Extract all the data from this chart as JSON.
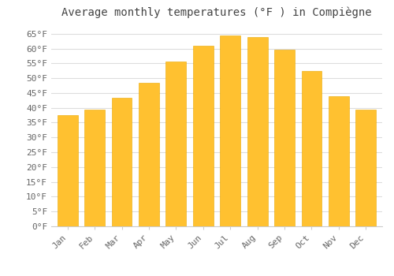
{
  "title": "Average monthly temperatures (°F ) in Compiègne",
  "months": [
    "Jan",
    "Feb",
    "Mar",
    "Apr",
    "May",
    "Jun",
    "Jul",
    "Aug",
    "Sep",
    "Oct",
    "Nov",
    "Dec"
  ],
  "values": [
    37.5,
    39.5,
    43.5,
    48.5,
    55.5,
    61.0,
    64.5,
    64.0,
    59.5,
    52.5,
    44.0,
    39.5
  ],
  "bar_color_top": "#FFC130",
  "bar_color_bottom": "#FFD878",
  "bar_edge_color": "#E8A800",
  "background_color": "#FFFFFF",
  "grid_color": "#DDDDDD",
  "ylim": [
    0,
    68
  ],
  "yticks": [
    0,
    5,
    10,
    15,
    20,
    25,
    30,
    35,
    40,
    45,
    50,
    55,
    60,
    65
  ],
  "title_fontsize": 10,
  "tick_fontsize": 8,
  "bar_width": 0.75,
  "title_color": "#444444",
  "tick_color": "#666666"
}
